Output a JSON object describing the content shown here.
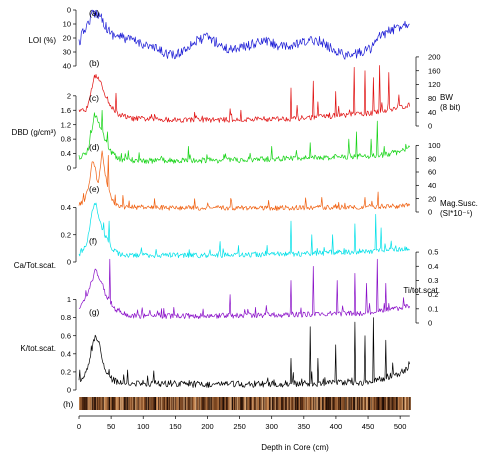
{
  "chart_data": {
    "type": "line",
    "x_axis": {
      "label": "Depth in Core (cm)",
      "ticks": [
        0,
        50,
        100,
        150,
        200,
        250,
        300,
        350,
        400,
        450,
        500
      ],
      "range": [
        0,
        520
      ]
    },
    "panels": [
      {
        "id": "a",
        "label": "(a)",
        "ylabel": "LOI (%)",
        "axis_side": "left",
        "inverted": true,
        "range": [
          0,
          40
        ],
        "ticks": [
          0,
          10,
          20,
          30,
          40
        ],
        "color": "#1f1fd6",
        "profile": [
          [
            0,
            24
          ],
          [
            8,
            14
          ],
          [
            14,
            10
          ],
          [
            20,
            3
          ],
          [
            28,
            2
          ],
          [
            35,
            5
          ],
          [
            42,
            12
          ],
          [
            50,
            17
          ],
          [
            70,
            20
          ],
          [
            100,
            24
          ],
          [
            130,
            30
          ],
          [
            150,
            33
          ],
          [
            175,
            24
          ],
          [
            200,
            19
          ],
          [
            230,
            28
          ],
          [
            260,
            26
          ],
          [
            290,
            22
          ],
          [
            320,
            27
          ],
          [
            345,
            24
          ],
          [
            370,
            21
          ],
          [
            395,
            28
          ],
          [
            420,
            33
          ],
          [
            440,
            30
          ],
          [
            455,
            27
          ],
          [
            470,
            18
          ],
          [
            490,
            14
          ],
          [
            505,
            10
          ],
          [
            515,
            9
          ]
        ]
      },
      {
        "id": "b",
        "label": "(b)",
        "ylabel": "BW (8 bit)",
        "axis_side": "right",
        "range": [
          0,
          220
        ],
        "ticks": [
          0,
          40,
          80,
          120,
          160,
          200
        ],
        "color": "#e01010",
        "profile": [
          [
            0,
            40
          ],
          [
            12,
            50
          ],
          [
            20,
            115
          ],
          [
            26,
            150
          ],
          [
            32,
            130
          ],
          [
            40,
            95
          ],
          [
            50,
            55
          ],
          [
            60,
            35
          ],
          [
            80,
            22
          ],
          [
            150,
            18
          ],
          [
            250,
            18
          ],
          [
            340,
            22
          ],
          [
            400,
            30
          ],
          [
            460,
            38
          ],
          [
            500,
            55
          ],
          [
            515,
            60
          ]
        ],
        "spikes": [
          [
            45,
            160
          ],
          [
            58,
            95
          ],
          [
            180,
            40
          ],
          [
            235,
            50
          ],
          [
            330,
            110
          ],
          [
            340,
            60
          ],
          [
            365,
            130
          ],
          [
            372,
            70
          ],
          [
            400,
            100
          ],
          [
            428,
            170
          ],
          [
            445,
            160
          ],
          [
            458,
            140
          ],
          [
            468,
            175
          ],
          [
            482,
            155
          ],
          [
            498,
            90
          ]
        ]
      },
      {
        "id": "c",
        "label": "(c)",
        "ylabel": "DBD (g/cm³)",
        "axis_side": "left",
        "range": [
          0,
          2.3
        ],
        "ticks": [
          0,
          0.4,
          0.8,
          1.2,
          1.6,
          2
        ],
        "color": "#18d418",
        "profile": [
          [
            0,
            0.3
          ],
          [
            12,
            0.4
          ],
          [
            18,
            0.8
          ],
          [
            24,
            1.5
          ],
          [
            30,
            1.3
          ],
          [
            38,
            0.9
          ],
          [
            48,
            0.5
          ],
          [
            60,
            0.25
          ],
          [
            100,
            0.2
          ],
          [
            250,
            0.22
          ],
          [
            400,
            0.3
          ],
          [
            470,
            0.35
          ],
          [
            500,
            0.45
          ],
          [
            515,
            0.6
          ]
        ],
        "spikes": [
          [
            36,
            1.6
          ],
          [
            44,
            1.0
          ],
          [
            170,
            0.6
          ],
          [
            300,
            0.6
          ],
          [
            360,
            0.7
          ],
          [
            420,
            0.8
          ],
          [
            432,
            1.0
          ],
          [
            455,
            0.8
          ],
          [
            464,
            1.3
          ],
          [
            475,
            0.6
          ]
        ]
      },
      {
        "id": "d",
        "label": "(d)",
        "ylabel": "Mag.Susc. (SI*10⁻⁵)",
        "axis_side": "right",
        "range": [
          0,
          105
        ],
        "ticks": [
          0,
          20,
          40,
          60,
          80,
          100
        ],
        "color": "#f06010",
        "profile": [
          [
            0,
            10
          ],
          [
            10,
            20
          ],
          [
            16,
            45
          ],
          [
            22,
            80
          ],
          [
            26,
            60
          ],
          [
            30,
            40
          ],
          [
            36,
            90
          ],
          [
            42,
            50
          ],
          [
            50,
            20
          ],
          [
            60,
            8
          ],
          [
            150,
            6
          ],
          [
            300,
            6
          ],
          [
            400,
            7
          ],
          [
            500,
            9
          ],
          [
            515,
            10
          ]
        ],
        "spikes": [
          [
            39,
            95
          ],
          [
            46,
            85
          ],
          [
            68,
            25
          ],
          [
            180,
            20
          ],
          [
            345,
            45
          ],
          [
            378,
            22
          ],
          [
            445,
            22
          ],
          [
            466,
            30
          ]
        ]
      },
      {
        "id": "e",
        "label": "(e)",
        "ylabel": "Ca/Tot.scat.",
        "axis_side": "left",
        "range": [
          0,
          0.55
        ],
        "ticks": [
          0,
          0.2,
          0.4
        ],
        "color": "#00e0e8",
        "profile": [
          [
            0,
            0.05
          ],
          [
            12,
            0.12
          ],
          [
            20,
            0.35
          ],
          [
            26,
            0.45
          ],
          [
            32,
            0.3
          ],
          [
            40,
            0.2
          ],
          [
            52,
            0.1
          ],
          [
            65,
            0.05
          ],
          [
            200,
            0.05
          ],
          [
            350,
            0.06
          ],
          [
            450,
            0.08
          ],
          [
            515,
            0.1
          ]
        ],
        "spikes": [
          [
            47,
            0.3
          ],
          [
            220,
            0.15
          ],
          [
            330,
            0.3
          ],
          [
            362,
            0.2
          ],
          [
            395,
            0.2
          ],
          [
            430,
            0.28
          ],
          [
            462,
            0.35
          ],
          [
            470,
            0.25
          ]
        ]
      },
      {
        "id": "f",
        "label": "(f)",
        "ylabel": "Ti/tot.scat.",
        "axis_side": "right",
        "range": [
          0,
          0.55
        ],
        "ticks": [
          0,
          0.1,
          0.2,
          0.3,
          0.4,
          0.5
        ],
        "color": "#8a10c8",
        "profile": [
          [
            0,
            0.1
          ],
          [
            12,
            0.18
          ],
          [
            20,
            0.3
          ],
          [
            26,
            0.38
          ],
          [
            32,
            0.3
          ],
          [
            42,
            0.2
          ],
          [
            55,
            0.1
          ],
          [
            80,
            0.05
          ],
          [
            200,
            0.05
          ],
          [
            350,
            0.06
          ],
          [
            450,
            0.07
          ],
          [
            515,
            0.12
          ]
        ],
        "spikes": [
          [
            48,
            0.45
          ],
          [
            235,
            0.2
          ],
          [
            330,
            0.3
          ],
          [
            365,
            0.4
          ],
          [
            402,
            0.3
          ],
          [
            430,
            0.35
          ],
          [
            448,
            0.28
          ],
          [
            464,
            0.45
          ],
          [
            478,
            0.28
          ]
        ]
      },
      {
        "id": "g",
        "label": "(g)",
        "ylabel": "K/tot.scat.",
        "axis_side": "left",
        "range": [
          0,
          1.05
        ],
        "ticks": [
          0,
          0.2,
          0.4,
          0.6,
          0.8,
          1
        ],
        "color": "#000000",
        "profile": [
          [
            0,
            0.08
          ],
          [
            12,
            0.2
          ],
          [
            20,
            0.45
          ],
          [
            25,
            0.6
          ],
          [
            30,
            0.55
          ],
          [
            36,
            0.35
          ],
          [
            45,
            0.15
          ],
          [
            60,
            0.08
          ],
          [
            200,
            0.06
          ],
          [
            350,
            0.07
          ],
          [
            450,
            0.08
          ],
          [
            505,
            0.2
          ],
          [
            515,
            0.25
          ]
        ],
        "spikes": [
          [
            180,
            0.1
          ],
          [
            240,
            0.1
          ],
          [
            330,
            0.35
          ],
          [
            360,
            0.7
          ],
          [
            372,
            0.35
          ],
          [
            400,
            0.5
          ],
          [
            430,
            0.75
          ],
          [
            445,
            0.6
          ],
          [
            458,
            0.8
          ],
          [
            465,
            0.98
          ],
          [
            478,
            0.55
          ],
          [
            488,
            0.3
          ]
        ]
      }
    ],
    "strip": {
      "label": "(h)",
      "colors": [
        "#7a4520",
        "#2a1208",
        "#c98a55",
        "#4a2510",
        "#e0b080",
        "#160804",
        "#9a6035"
      ]
    }
  }
}
